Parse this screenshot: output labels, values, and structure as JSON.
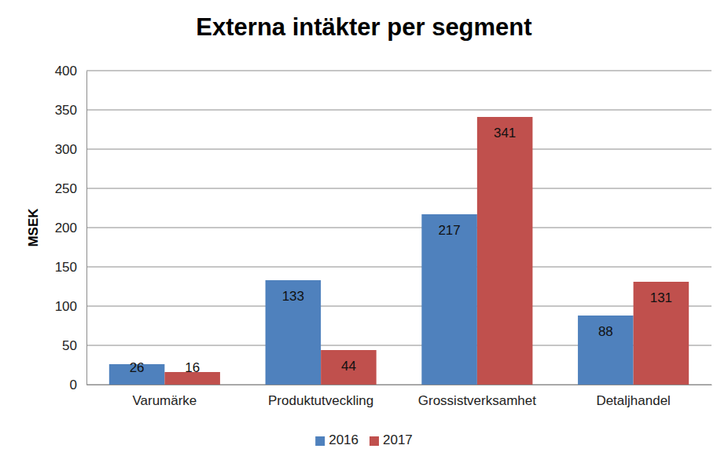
{
  "chart_data": {
    "type": "bar",
    "title": "Externa intäkter per segment",
    "ylabel": "MSEK",
    "categories": [
      "Varumärke",
      "Produktutveckling",
      "Grossistverksamhet",
      "Detaljhandel"
    ],
    "series": [
      {
        "name": "2016",
        "color": "#4f81bd",
        "values": [
          26,
          133,
          217,
          88
        ]
      },
      {
        "name": "2017",
        "color": "#c0504d",
        "values": [
          16,
          44,
          341,
          131
        ]
      }
    ],
    "ylim": [
      0,
      400
    ],
    "yticks": [
      0,
      50,
      100,
      150,
      200,
      250,
      300,
      350,
      400
    ],
    "grid": true,
    "legend": "bottom",
    "data_labels": true
  }
}
